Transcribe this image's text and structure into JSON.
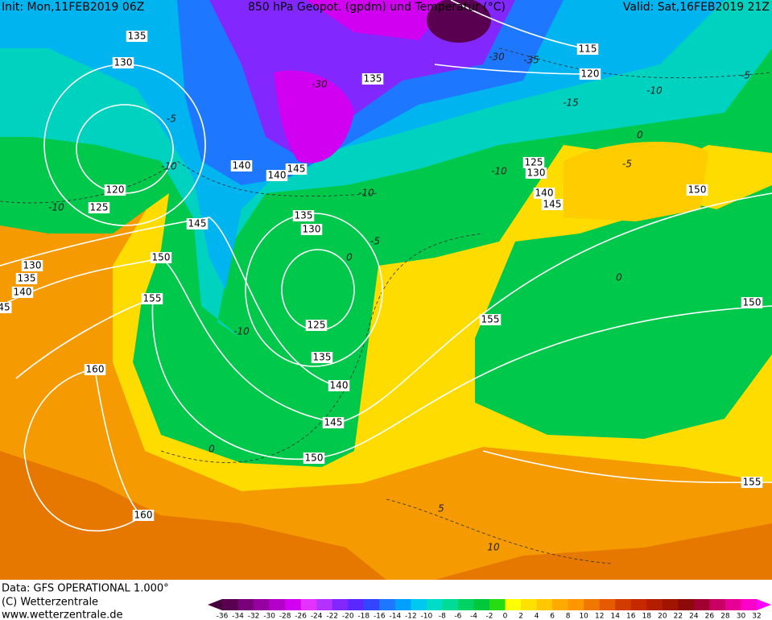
{
  "header": {
    "init": "Init: Mon,11FEB2019 06Z",
    "title": "850 hPa Geopot. (gpdm) und Temperatur (°C)",
    "valid": "Valid: Sat,16FEB2019 21Z"
  },
  "map": {
    "height_labels": [
      135,
      130,
      120,
      125,
      130,
      135,
      140,
      45,
      140,
      140,
      145,
      135,
      145,
      150,
      155,
      160,
      135,
      130,
      125,
      135,
      140,
      145,
      150,
      160,
      155,
      125,
      130,
      140,
      145,
      115,
      120,
      150,
      150,
      155
    ],
    "temperature_labels": [
      -10,
      -5,
      -10,
      -10,
      -5,
      0,
      -10,
      0,
      -30,
      -30,
      -35,
      -15,
      -10,
      -5,
      -5,
      0,
      0,
      5,
      10,
      -10
    ]
  },
  "colorbar": {
    "ticks": [
      -36,
      -34,
      -32,
      -30,
      -28,
      -26,
      -24,
      -22,
      -20,
      -18,
      -16,
      -14,
      -12,
      -10,
      -8,
      -6,
      -4,
      -2,
      0,
      2,
      4,
      6,
      8,
      10,
      12,
      14,
      16,
      18,
      20,
      22,
      24,
      26,
      28,
      30,
      32
    ],
    "colors": [
      "#46003c",
      "#5a0050",
      "#780078",
      "#9600a0",
      "#b400c8",
      "#d200f0",
      "#e632ff",
      "#b432ff",
      "#8228ff",
      "#5a28ff",
      "#3246ff",
      "#1e78ff",
      "#00a0ff",
      "#00c8f0",
      "#00dcc8",
      "#00dc96",
      "#00d264",
      "#00c83c",
      "#28dc14",
      "#ffff00",
      "#ffe100",
      "#ffc800",
      "#ffaa00",
      "#ff9600",
      "#f07800",
      "#e65a00",
      "#d23c00",
      "#c82800",
      "#b41e00",
      "#a01400",
      "#8c0a0a",
      "#a00032",
      "#c80064",
      "#e60096",
      "#ff00c8",
      "#ff00ff"
    ]
  },
  "footer": {
    "data": "Data: GFS OPERATIONAL 1.000°",
    "copyright": "(C) Wetterzentrale",
    "url": "www.wetterzentrale.de"
  }
}
